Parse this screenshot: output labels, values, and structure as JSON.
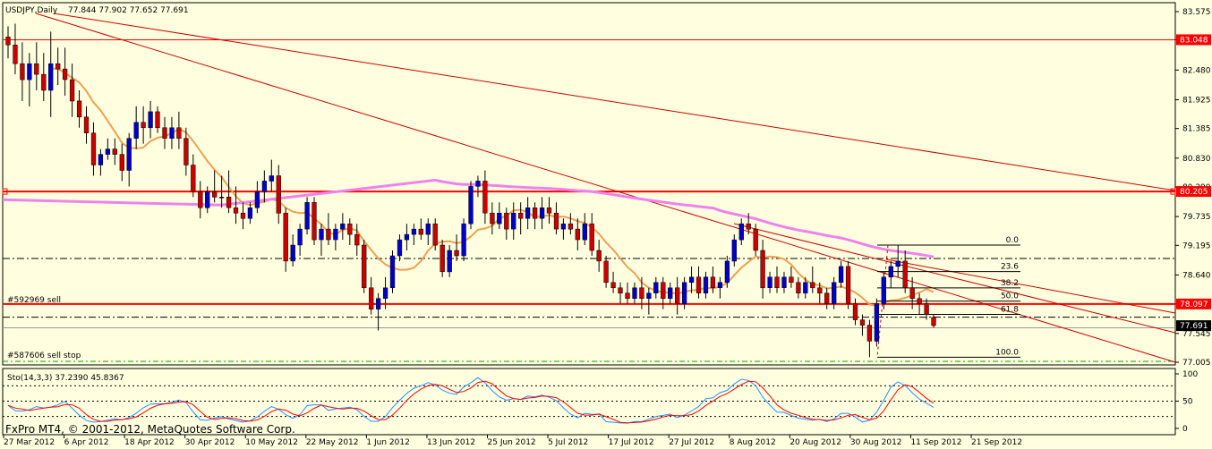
{
  "header": {
    "symbol": "USDJPY,Daily",
    "ohlc": "77.844 77.902 77.652 77.691"
  },
  "watermark": "FxPro MT4, © 2001-2012, MetaQuotes Software Corp.",
  "orders": {
    "sell": "#592969 sell",
    "sell_stop": "#587606 sell stop"
  },
  "price_tags": {
    "top": "83.048",
    "resistance": "80.205",
    "sell_level": "78.097",
    "current": "77.691"
  },
  "fib_labels": [
    "0.0",
    "23.6",
    "38.2",
    "50.0",
    "61.8",
    "100.0"
  ],
  "stoch": {
    "label": "Sto(14,3,3) 37.2390 45.8367",
    "ticks": [
      "100",
      "50",
      "0"
    ]
  },
  "colors": {
    "background": "#ffffe0",
    "bull": "#0000cc",
    "bear": "#cc0000",
    "ma_fast": "#f0a050",
    "ma_slow": "#ee82ee",
    "level": "#ff0000",
    "tag_red": "#ff0000",
    "tag_black": "#000000"
  },
  "chart_data": {
    "type": "candlestick",
    "y_ticks": [
      "83.575",
      "83.048",
      "82.480",
      "81.925",
      "81.385",
      "80.830",
      "80.290",
      "79.735",
      "79.195",
      "78.640",
      "78.097",
      "77.545",
      "77.005"
    ],
    "ylim": [
      77.005,
      83.575
    ],
    "x_ticks": [
      "27 Mar 2012",
      "6 Apr 2012",
      "18 Apr 2012",
      "30 Apr 2012",
      "10 May 2012",
      "22 May 2012",
      "1 Jun 2012",
      "13 Jun 2012",
      "25 Jun 2012",
      "5 Jul 2012",
      "17 Jul 2012",
      "27 Jul 2012",
      "8 Aug 2012",
      "20 Aug 2012",
      "30 Aug 2012",
      "11 Sep 2012",
      "21 Sep 2012"
    ],
    "levels": [
      83.048,
      80.205,
      78.097
    ],
    "dashed_levels": [
      78.95,
      77.85
    ],
    "ohlc": [
      [
        83.1,
        83.3,
        82.7,
        82.95
      ],
      [
        82.95,
        83.35,
        82.4,
        82.6
      ],
      [
        82.6,
        83.0,
        81.9,
        82.3
      ],
      [
        82.3,
        82.8,
        81.8,
        82.6
      ],
      [
        82.6,
        83.0,
        82.1,
        82.4
      ],
      [
        82.4,
        82.8,
        81.9,
        82.1
      ],
      [
        82.1,
        83.2,
        81.6,
        82.6
      ],
      [
        82.6,
        82.9,
        82.2,
        82.5
      ],
      [
        82.5,
        82.9,
        82.0,
        82.3
      ],
      [
        82.3,
        82.6,
        81.6,
        81.9
      ],
      [
        81.9,
        82.1,
        81.4,
        81.6
      ],
      [
        81.6,
        81.8,
        81.1,
        81.3
      ],
      [
        81.3,
        81.5,
        80.5,
        80.7
      ],
      [
        80.7,
        81.0,
        80.5,
        80.9
      ],
      [
        80.9,
        81.2,
        80.8,
        81.0
      ],
      [
        81.0,
        81.2,
        80.7,
        80.9
      ],
      [
        80.9,
        81.1,
        80.4,
        80.6
      ],
      [
        80.6,
        81.3,
        80.3,
        81.2
      ],
      [
        81.2,
        81.8,
        81.0,
        81.5
      ],
      [
        81.5,
        81.8,
        81.1,
        81.4
      ],
      [
        81.4,
        81.9,
        81.2,
        81.7
      ],
      [
        81.7,
        81.8,
        81.3,
        81.4
      ],
      [
        81.4,
        81.6,
        81.0,
        81.2
      ],
      [
        81.2,
        81.6,
        81.0,
        81.4
      ],
      [
        81.4,
        81.7,
        81.0,
        81.2
      ],
      [
        81.2,
        81.4,
        80.5,
        80.7
      ],
      [
        80.7,
        80.9,
        80.1,
        80.2
      ],
      [
        80.2,
        80.4,
        79.7,
        79.9
      ],
      [
        79.9,
        80.3,
        79.8,
        80.2
      ],
      [
        80.2,
        80.6,
        80.0,
        80.1
      ],
      [
        80.1,
        80.5,
        79.9,
        80.1
      ],
      [
        80.1,
        80.6,
        79.8,
        79.9
      ],
      [
        79.9,
        80.3,
        79.6,
        79.8
      ],
      [
        79.8,
        80.0,
        79.5,
        79.7
      ],
      [
        79.7,
        80.0,
        79.6,
        79.9
      ],
      [
        79.9,
        80.4,
        79.8,
        80.2
      ],
      [
        80.2,
        80.6,
        80.0,
        80.4
      ],
      [
        80.4,
        80.8,
        80.2,
        80.5
      ],
      [
        80.5,
        80.7,
        79.6,
        79.8
      ],
      [
        79.8,
        79.9,
        78.7,
        78.9
      ],
      [
        78.9,
        79.4,
        78.8,
        79.2
      ],
      [
        79.2,
        79.6,
        79.0,
        79.5
      ],
      [
        79.5,
        80.1,
        79.4,
        80.0
      ],
      [
        80.0,
        80.1,
        79.2,
        79.3
      ],
      [
        79.3,
        79.6,
        79.0,
        79.5
      ],
      [
        79.5,
        79.8,
        79.2,
        79.3
      ],
      [
        79.3,
        79.6,
        79.1,
        79.5
      ],
      [
        79.5,
        79.8,
        79.3,
        79.6
      ],
      [
        79.6,
        79.7,
        79.2,
        79.4
      ],
      [
        79.4,
        79.6,
        79.0,
        79.2
      ],
      [
        79.2,
        79.3,
        78.3,
        78.4
      ],
      [
        78.4,
        78.6,
        77.9,
        78.0
      ],
      [
        78.0,
        78.3,
        77.6,
        78.2
      ],
      [
        78.2,
        78.6,
        78.0,
        78.4
      ],
      [
        78.4,
        79.1,
        78.3,
        79.0
      ],
      [
        79.0,
        79.4,
        78.9,
        79.3
      ],
      [
        79.3,
        79.6,
        79.1,
        79.4
      ],
      [
        79.4,
        79.6,
        79.2,
        79.5
      ],
      [
        79.5,
        79.7,
        79.3,
        79.4
      ],
      [
        79.4,
        79.7,
        79.2,
        79.6
      ],
      [
        79.6,
        79.7,
        79.1,
        79.2
      ],
      [
        79.2,
        79.3,
        78.6,
        78.7
      ],
      [
        78.7,
        79.2,
        78.6,
        79.1
      ],
      [
        79.1,
        79.4,
        78.9,
        79.0
      ],
      [
        79.0,
        79.7,
        78.9,
        79.6
      ],
      [
        79.6,
        80.4,
        79.5,
        80.3
      ],
      [
        80.3,
        80.5,
        80.1,
        80.4
      ],
      [
        80.4,
        80.6,
        79.6,
        79.8
      ],
      [
        79.8,
        80.0,
        79.4,
        79.6
      ],
      [
        79.6,
        80.0,
        79.5,
        79.8
      ],
      [
        79.8,
        79.9,
        79.3,
        79.5
      ],
      [
        79.5,
        80.0,
        79.3,
        79.8
      ],
      [
        79.8,
        80.0,
        79.4,
        79.7
      ],
      [
        79.7,
        80.1,
        79.5,
        79.9
      ],
      [
        79.9,
        80.0,
        79.5,
        79.7
      ],
      [
        79.7,
        80.1,
        79.5,
        79.9
      ],
      [
        79.9,
        80.1,
        79.6,
        79.8
      ],
      [
        79.8,
        80.0,
        79.4,
        79.5
      ],
      [
        79.5,
        79.7,
        79.3,
        79.6
      ],
      [
        79.6,
        79.8,
        79.4,
        79.5
      ],
      [
        79.5,
        79.7,
        79.1,
        79.3
      ],
      [
        79.3,
        79.8,
        79.2,
        79.6
      ],
      [
        79.6,
        79.8,
        79.0,
        79.1
      ],
      [
        79.1,
        79.3,
        78.7,
        78.9
      ],
      [
        78.9,
        79.0,
        78.4,
        78.5
      ],
      [
        78.5,
        78.7,
        78.3,
        78.4
      ],
      [
        78.4,
        78.5,
        78.1,
        78.3
      ],
      [
        78.3,
        78.5,
        78.1,
        78.2
      ],
      [
        78.2,
        78.5,
        78.1,
        78.4
      ],
      [
        78.4,
        78.6,
        78.0,
        78.2
      ],
      [
        78.2,
        78.4,
        77.9,
        78.3
      ],
      [
        78.3,
        78.6,
        78.2,
        78.5
      ],
      [
        78.5,
        78.6,
        78.0,
        78.2
      ],
      [
        78.2,
        78.5,
        78.1,
        78.4
      ],
      [
        78.4,
        78.6,
        77.9,
        78.1
      ],
      [
        78.1,
        78.6,
        78.0,
        78.5
      ],
      [
        78.5,
        78.8,
        78.3,
        78.6
      ],
      [
        78.6,
        78.8,
        78.2,
        78.3
      ],
      [
        78.3,
        78.7,
        78.2,
        78.6
      ],
      [
        78.6,
        78.8,
        78.3,
        78.4
      ],
      [
        78.4,
        78.6,
        78.2,
        78.5
      ],
      [
        78.5,
        79.0,
        78.4,
        78.9
      ],
      [
        78.9,
        79.4,
        78.8,
        79.3
      ],
      [
        79.3,
        79.7,
        79.2,
        79.6
      ],
      [
        79.6,
        79.8,
        79.4,
        79.5
      ],
      [
        79.5,
        79.6,
        79.0,
        79.1
      ],
      [
        79.1,
        79.3,
        78.2,
        78.4
      ],
      [
        78.4,
        78.7,
        78.3,
        78.6
      ],
      [
        78.6,
        78.8,
        78.3,
        78.4
      ],
      [
        78.4,
        78.7,
        78.3,
        78.6
      ],
      [
        78.6,
        78.8,
        78.4,
        78.5
      ],
      [
        78.5,
        78.6,
        78.2,
        78.3
      ],
      [
        78.3,
        78.6,
        78.2,
        78.5
      ],
      [
        78.5,
        78.8,
        78.3,
        78.4
      ],
      [
        78.4,
        78.5,
        78.1,
        78.3
      ],
      [
        78.3,
        78.4,
        78.0,
        78.1
      ],
      [
        78.1,
        78.6,
        78.0,
        78.5
      ],
      [
        78.5,
        78.9,
        78.4,
        78.8
      ],
      [
        78.8,
        78.9,
        78.0,
        78.1
      ],
      [
        78.1,
        78.2,
        77.7,
        77.8
      ],
      [
        77.8,
        77.9,
        77.5,
        77.7
      ],
      [
        77.7,
        77.8,
        77.1,
        77.4
      ],
      [
        77.4,
        78.2,
        77.3,
        78.1
      ],
      [
        78.1,
        78.7,
        78.0,
        78.6
      ],
      [
        78.6,
        78.9,
        78.4,
        78.8
      ],
      [
        78.8,
        79.2,
        78.6,
        78.9
      ],
      [
        78.9,
        79.1,
        78.3,
        78.4
      ],
      [
        78.4,
        78.6,
        78.0,
        78.2
      ],
      [
        78.2,
        78.3,
        77.9,
        78.1
      ],
      [
        78.1,
        78.2,
        77.8,
        77.9
      ],
      [
        77.844,
        77.902,
        77.652,
        77.691
      ]
    ]
  }
}
